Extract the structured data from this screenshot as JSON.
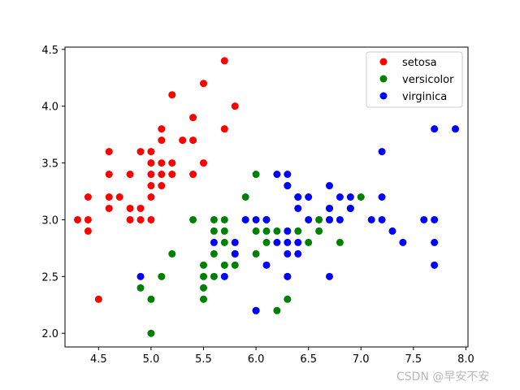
{
  "chart_data": {
    "type": "scatter",
    "title": "",
    "xlabel": "",
    "ylabel": "",
    "xlim": [
      4.18,
      8.02
    ],
    "ylim": [
      1.88,
      4.52
    ],
    "xticks": [
      4.5,
      5.0,
      5.5,
      6.0,
      6.5,
      7.0,
      7.5,
      8.0
    ],
    "yticks": [
      2.0,
      2.5,
      3.0,
      3.5,
      4.0,
      4.5
    ],
    "xtick_labels": [
      "4.5",
      "5.0",
      "5.5",
      "6.0",
      "6.5",
      "7.0",
      "7.5",
      "8.0"
    ],
    "ytick_labels": [
      "2.0",
      "2.5",
      "3.0",
      "3.5",
      "4.0",
      "4.5"
    ],
    "grid": false,
    "legend_position": "top-right",
    "series": [
      {
        "name": "setosa",
        "color": "#ff0000",
        "points": [
          [
            4.3,
            3.0
          ],
          [
            4.4,
            3.0
          ],
          [
            4.4,
            2.9
          ],
          [
            4.4,
            3.2
          ],
          [
            4.5,
            2.3
          ],
          [
            4.6,
            3.1
          ],
          [
            4.6,
            3.4
          ],
          [
            4.6,
            3.6
          ],
          [
            4.6,
            3.2
          ],
          [
            4.7,
            3.2
          ],
          [
            4.8,
            3.0
          ],
          [
            4.8,
            3.4
          ],
          [
            4.8,
            3.1
          ],
          [
            4.9,
            3.0
          ],
          [
            4.9,
            3.1
          ],
          [
            4.9,
            3.6
          ],
          [
            5.0,
            3.0
          ],
          [
            5.0,
            3.2
          ],
          [
            5.0,
            3.3
          ],
          [
            5.0,
            3.4
          ],
          [
            5.0,
            3.5
          ],
          [
            5.0,
            3.6
          ],
          [
            5.1,
            3.3
          ],
          [
            5.1,
            3.4
          ],
          [
            5.1,
            3.5
          ],
          [
            5.1,
            3.7
          ],
          [
            5.1,
            3.8
          ],
          [
            5.2,
            3.4
          ],
          [
            5.2,
            3.5
          ],
          [
            5.2,
            4.1
          ],
          [
            5.3,
            3.7
          ],
          [
            5.4,
            3.4
          ],
          [
            5.4,
            3.7
          ],
          [
            5.4,
            3.9
          ],
          [
            5.5,
            3.5
          ],
          [
            5.5,
            4.2
          ],
          [
            5.7,
            3.8
          ],
          [
            5.7,
            4.4
          ],
          [
            5.8,
            4.0
          ]
        ]
      },
      {
        "name": "versicolor",
        "color": "#008000",
        "points": [
          [
            4.9,
            2.4
          ],
          [
            5.0,
            2.0
          ],
          [
            5.0,
            2.3
          ],
          [
            5.1,
            2.5
          ],
          [
            5.2,
            2.7
          ],
          [
            5.4,
            3.0
          ],
          [
            5.5,
            2.3
          ],
          [
            5.5,
            2.4
          ],
          [
            5.5,
            2.5
          ],
          [
            5.5,
            2.6
          ],
          [
            5.6,
            2.5
          ],
          [
            5.6,
            2.7
          ],
          [
            5.6,
            2.9
          ],
          [
            5.6,
            3.0
          ],
          [
            5.7,
            2.6
          ],
          [
            5.7,
            2.8
          ],
          [
            5.7,
            2.9
          ],
          [
            5.7,
            3.0
          ],
          [
            5.8,
            2.6
          ],
          [
            5.8,
            2.7
          ],
          [
            5.9,
            3.0
          ],
          [
            5.9,
            3.2
          ],
          [
            6.0,
            2.2
          ],
          [
            6.0,
            2.7
          ],
          [
            6.0,
            2.9
          ],
          [
            6.0,
            3.4
          ],
          [
            6.1,
            2.8
          ],
          [
            6.1,
            2.9
          ],
          [
            6.1,
            3.0
          ],
          [
            6.2,
            2.2
          ],
          [
            6.2,
            2.9
          ],
          [
            6.3,
            2.3
          ],
          [
            6.3,
            2.5
          ],
          [
            6.3,
            3.3
          ],
          [
            6.4,
            2.9
          ],
          [
            6.4,
            3.2
          ],
          [
            6.5,
            2.8
          ],
          [
            6.6,
            2.9
          ],
          [
            6.6,
            3.0
          ],
          [
            6.7,
            3.0
          ],
          [
            6.7,
            3.1
          ],
          [
            6.8,
            2.8
          ],
          [
            6.9,
            3.1
          ],
          [
            7.0,
            3.2
          ]
        ]
      },
      {
        "name": "virginica",
        "color": "#0000ff",
        "points": [
          [
            4.9,
            2.5
          ],
          [
            5.6,
            2.8
          ],
          [
            5.7,
            2.5
          ],
          [
            5.8,
            2.7
          ],
          [
            5.8,
            2.8
          ],
          [
            5.9,
            3.0
          ],
          [
            6.0,
            2.2
          ],
          [
            6.0,
            3.0
          ],
          [
            6.1,
            2.6
          ],
          [
            6.1,
            3.0
          ],
          [
            6.2,
            2.8
          ],
          [
            6.2,
            3.4
          ],
          [
            6.3,
            2.5
          ],
          [
            6.3,
            2.7
          ],
          [
            6.3,
            2.8
          ],
          [
            6.3,
            2.9
          ],
          [
            6.3,
            3.3
          ],
          [
            6.3,
            3.4
          ],
          [
            6.4,
            2.7
          ],
          [
            6.4,
            2.8
          ],
          [
            6.4,
            3.1
          ],
          [
            6.4,
            3.2
          ],
          [
            6.5,
            3.0
          ],
          [
            6.5,
            3.2
          ],
          [
            6.7,
            2.5
          ],
          [
            6.7,
            3.0
          ],
          [
            6.7,
            3.1
          ],
          [
            6.7,
            3.3
          ],
          [
            6.8,
            3.0
          ],
          [
            6.8,
            3.2
          ],
          [
            6.9,
            3.1
          ],
          [
            6.9,
            3.2
          ],
          [
            7.1,
            3.0
          ],
          [
            7.2,
            3.0
          ],
          [
            7.2,
            3.2
          ],
          [
            7.2,
            3.6
          ],
          [
            7.3,
            2.9
          ],
          [
            7.4,
            2.8
          ],
          [
            7.6,
            3.0
          ],
          [
            7.7,
            2.6
          ],
          [
            7.7,
            2.8
          ],
          [
            7.7,
            3.0
          ],
          [
            7.7,
            3.8
          ],
          [
            7.9,
            3.8
          ]
        ]
      }
    ]
  },
  "watermark": "CSDN @早安不安"
}
